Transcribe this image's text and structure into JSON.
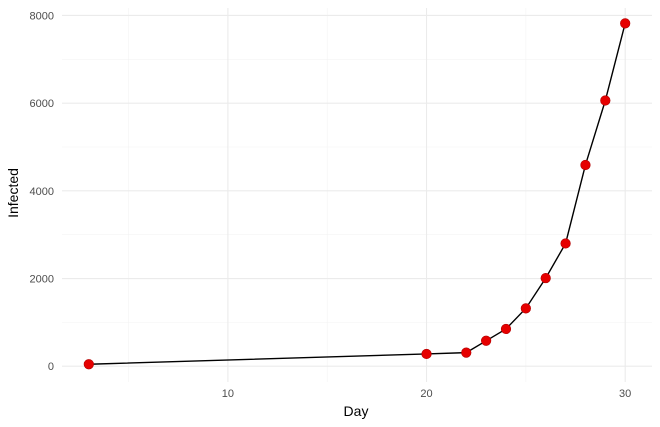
{
  "chart_data": {
    "type": "line",
    "title": "",
    "xlabel": "Day",
    "ylabel": "Infected",
    "xlim": [
      1.65,
      31.35
    ],
    "ylim": [
      -360,
      8170
    ],
    "x_ticks": [
      10,
      20,
      30
    ],
    "x_tick_labels": [
      "10",
      "20",
      "30"
    ],
    "x_minor_ticks": [
      5,
      15,
      25
    ],
    "y_ticks": [
      0,
      2000,
      4000,
      6000,
      8000
    ],
    "y_tick_labels": [
      "0",
      "2000",
      "4000",
      "6000",
      "8000"
    ],
    "y_minor_ticks": [
      1000,
      3000,
      5000,
      7000
    ],
    "grid": true,
    "legend": "none",
    "series": [
      {
        "name": "Infected",
        "line_color": "#000000",
        "point_color": "#e60000",
        "x": [
          3,
          20,
          22,
          23,
          24,
          25,
          26,
          27,
          28,
          29,
          30
        ],
        "y": [
          45,
          280,
          310,
          580,
          850,
          1320,
          2010,
          2800,
          4590,
          6060,
          7820
        ]
      }
    ]
  }
}
